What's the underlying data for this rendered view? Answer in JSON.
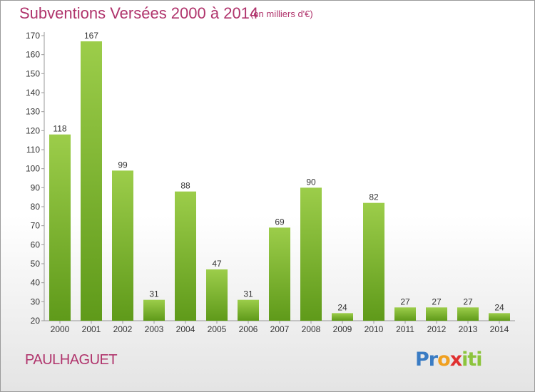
{
  "header": {
    "title": "Subventions Versées 2000 à 2014",
    "unit": "(en milliers d'€)"
  },
  "footer": {
    "commune": "PAULHAGUET",
    "logo_letters": [
      {
        "char": "P",
        "color": "#3a7cc4"
      },
      {
        "char": "r",
        "color": "#3a7cc4"
      },
      {
        "char": "o",
        "color": "#f0a020"
      },
      {
        "char": "x",
        "color": "#e03030"
      },
      {
        "char": "i",
        "color": "#8cc43c"
      },
      {
        "char": "t",
        "color": "#8cc43c"
      },
      {
        "char": "i",
        "color": "#8cc43c"
      }
    ]
  },
  "chart_data": {
    "type": "bar",
    "title": "Subventions Versées 2000 à 2014",
    "subtitle": "(en milliers d'€)",
    "categories": [
      "2000",
      "2001",
      "2002",
      "2003",
      "2004",
      "2005",
      "2006",
      "2007",
      "2008",
      "2009",
      "2010",
      "2011",
      "2012",
      "2013",
      "2014"
    ],
    "values": [
      118,
      167,
      99,
      31,
      88,
      47,
      31,
      69,
      90,
      24,
      82,
      27,
      27,
      27,
      24
    ],
    "ylim": [
      20,
      170
    ],
    "yticks": [
      20,
      30,
      40,
      50,
      60,
      70,
      80,
      90,
      100,
      110,
      120,
      130,
      140,
      150,
      160,
      170
    ],
    "grid": false,
    "legend": "none",
    "colors": {
      "bar_top": "#9ccd4a",
      "bar_bottom": "#5f9a1a",
      "axis": "#999999",
      "title": "#b0346c"
    }
  }
}
